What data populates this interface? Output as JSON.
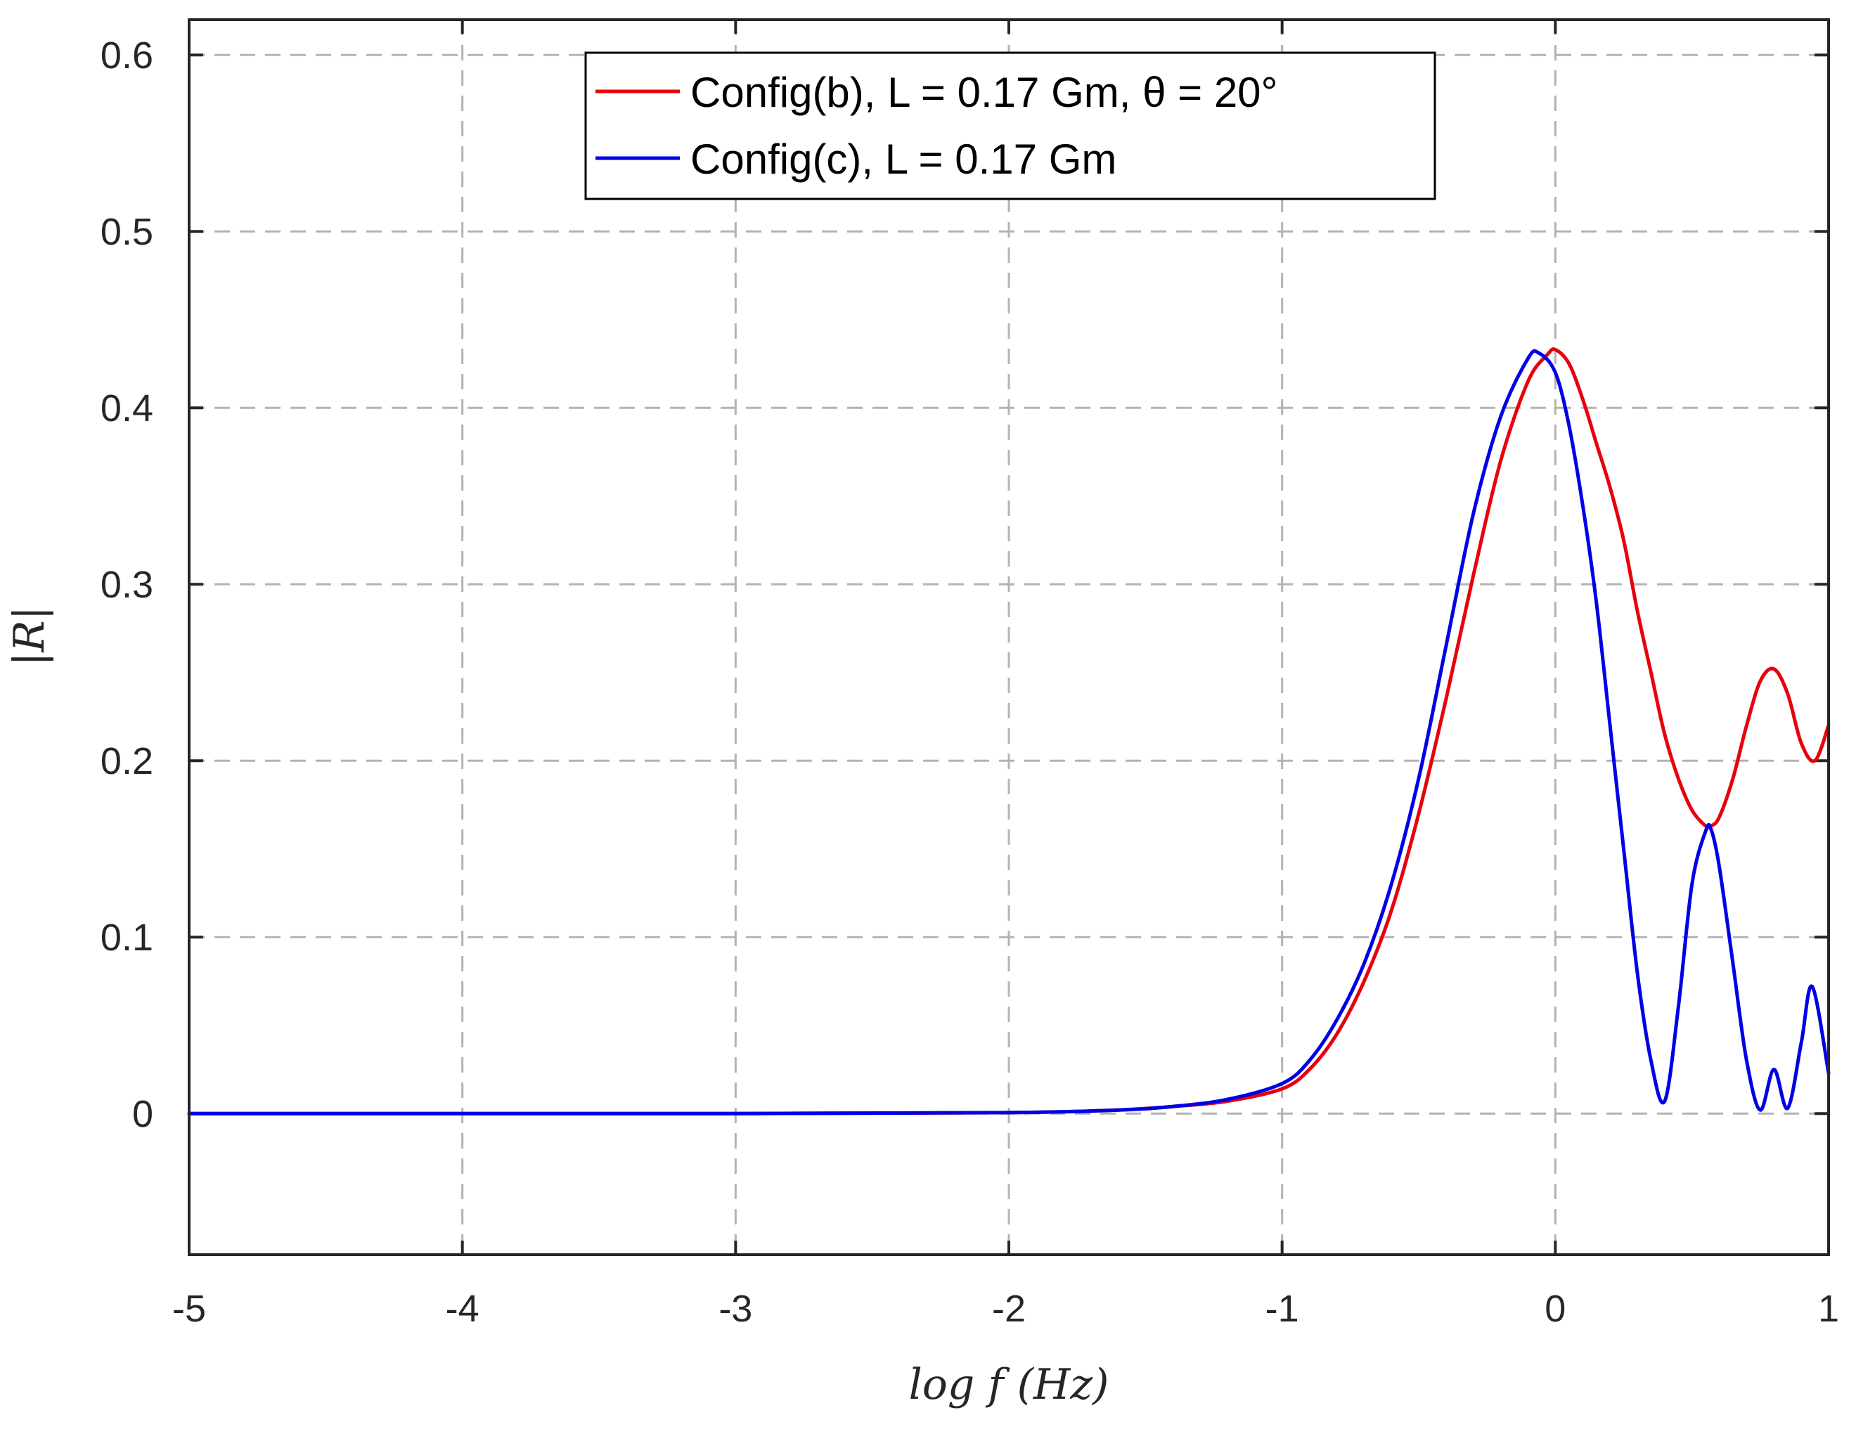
{
  "chart_data": {
    "type": "line",
    "xlabel": "log f (Hz)",
    "ylabel": "|R|",
    "xlim": [
      -5,
      1
    ],
    "ylim": [
      -0.08,
      0.62
    ],
    "xticks": [
      "-5",
      "-4",
      "-3",
      "-2",
      "-1",
      "0",
      "1"
    ],
    "yticks": [
      "0",
      "0.1",
      "0.2",
      "0.3",
      "0.4",
      "0.5",
      "0.6"
    ],
    "grid": true,
    "legend_position": "top-center",
    "series": [
      {
        "name": "Config(b), L = 0.17 Gm, θ = 20°",
        "color": "#e8000b",
        "x": [
          -5,
          -3,
          -2,
          -1.6,
          -1.4,
          -1.2,
          -1.0,
          -0.9,
          -0.8,
          -0.7,
          -0.6,
          -0.5,
          -0.4,
          -0.3,
          -0.2,
          -0.1,
          -0.03,
          0.0,
          0.05,
          0.1,
          0.15,
          0.2,
          0.25,
          0.3,
          0.35,
          0.4,
          0.45,
          0.5,
          0.55,
          0.57,
          0.6,
          0.65,
          0.7,
          0.75,
          0.8,
          0.85,
          0.9,
          0.95,
          1.0
        ],
        "y": [
          0,
          0,
          0.0005,
          0.002,
          0.004,
          0.007,
          0.014,
          0.025,
          0.045,
          0.075,
          0.115,
          0.17,
          0.235,
          0.305,
          0.37,
          0.415,
          0.43,
          0.433,
          0.425,
          0.405,
          0.38,
          0.355,
          0.325,
          0.285,
          0.25,
          0.215,
          0.19,
          0.172,
          0.163,
          0.163,
          0.168,
          0.19,
          0.22,
          0.245,
          0.252,
          0.238,
          0.21,
          0.2,
          0.22
        ]
      },
      {
        "name": "Config(c), L = 0.17 Gm",
        "color": "#0000e6",
        "x": [
          -5,
          -3,
          -2,
          -1.6,
          -1.4,
          -1.2,
          -1.0,
          -0.9,
          -0.8,
          -0.7,
          -0.6,
          -0.5,
          -0.4,
          -0.3,
          -0.2,
          -0.1,
          -0.06,
          0.0,
          0.05,
          0.1,
          0.15,
          0.2,
          0.25,
          0.3,
          0.35,
          0.4,
          0.45,
          0.5,
          0.55,
          0.57,
          0.6,
          0.65,
          0.7,
          0.75,
          0.8,
          0.85,
          0.9,
          0.94,
          1.0
        ],
        "y": [
          0,
          0,
          0.0005,
          0.002,
          0.004,
          0.008,
          0.017,
          0.03,
          0.053,
          0.085,
          0.13,
          0.19,
          0.265,
          0.34,
          0.395,
          0.428,
          0.431,
          0.42,
          0.39,
          0.345,
          0.29,
          0.22,
          0.15,
          0.08,
          0.03,
          0.007,
          0.06,
          0.13,
          0.16,
          0.161,
          0.14,
          0.085,
          0.03,
          0.002,
          0.025,
          0.003,
          0.04,
          0.072,
          0.023
        ]
      }
    ]
  }
}
